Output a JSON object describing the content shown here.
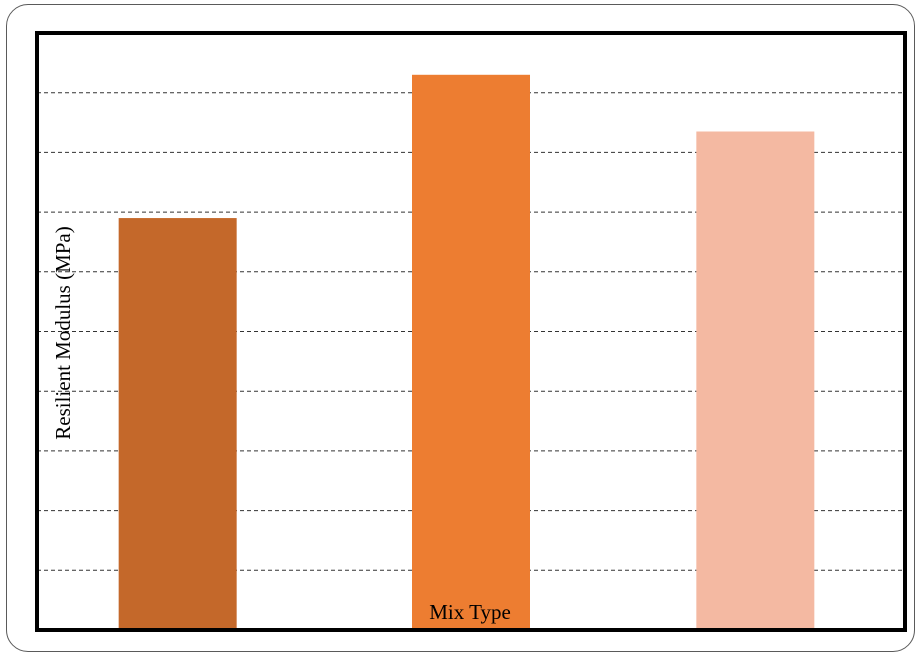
{
  "chart_data": {
    "type": "bar",
    "title": "",
    "xlabel": "Mix Type",
    "ylabel": "Resilient Modulus (MPa)",
    "categories": [
      "",
      "",
      ""
    ],
    "values": [
      6.9,
      9.3,
      8.35
    ],
    "ylim": [
      0,
      10
    ],
    "grid": true,
    "grid_style": "dashed",
    "legend": "none",
    "bar_colors": [
      "#C4682A",
      "#ED7D31",
      "#F4B9A2"
    ],
    "grid_color": "#333333",
    "axis_color": "#000000"
  }
}
